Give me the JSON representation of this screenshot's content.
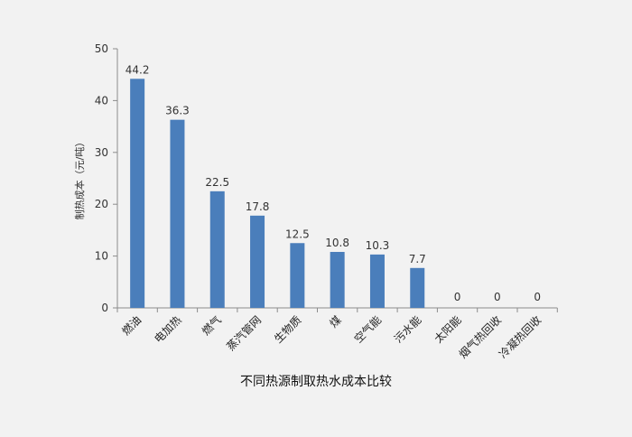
{
  "chart_data": {
    "type": "bar",
    "title": "不同热源制取热水成本比较",
    "ylabel": "制热成本（元/吨）",
    "xlabel": "",
    "categories": [
      "燃油",
      "电加热",
      "燃气",
      "蒸汽管网",
      "生物质",
      "煤",
      "空气能",
      "污水能",
      "太阳能",
      "烟气热回收",
      "冷凝热回收"
    ],
    "values": [
      44.2,
      36.3,
      22.5,
      17.8,
      12.5,
      10.8,
      10.3,
      7.7,
      0,
      0,
      0
    ],
    "value_labels": [
      "44.2",
      "36.3",
      "22.5",
      "17.8",
      "12.5",
      "10.8",
      "10.3",
      "7.7",
      "0",
      "0",
      "0"
    ],
    "ylim": [
      0,
      50
    ],
    "yticks": [
      "0",
      "10",
      "20",
      "30",
      "40",
      "50"
    ],
    "grid": false,
    "legend": "none",
    "bar_color": "#4a7ebb",
    "axis_color": "#8c8c8c",
    "background": "#f2f2f2"
  }
}
